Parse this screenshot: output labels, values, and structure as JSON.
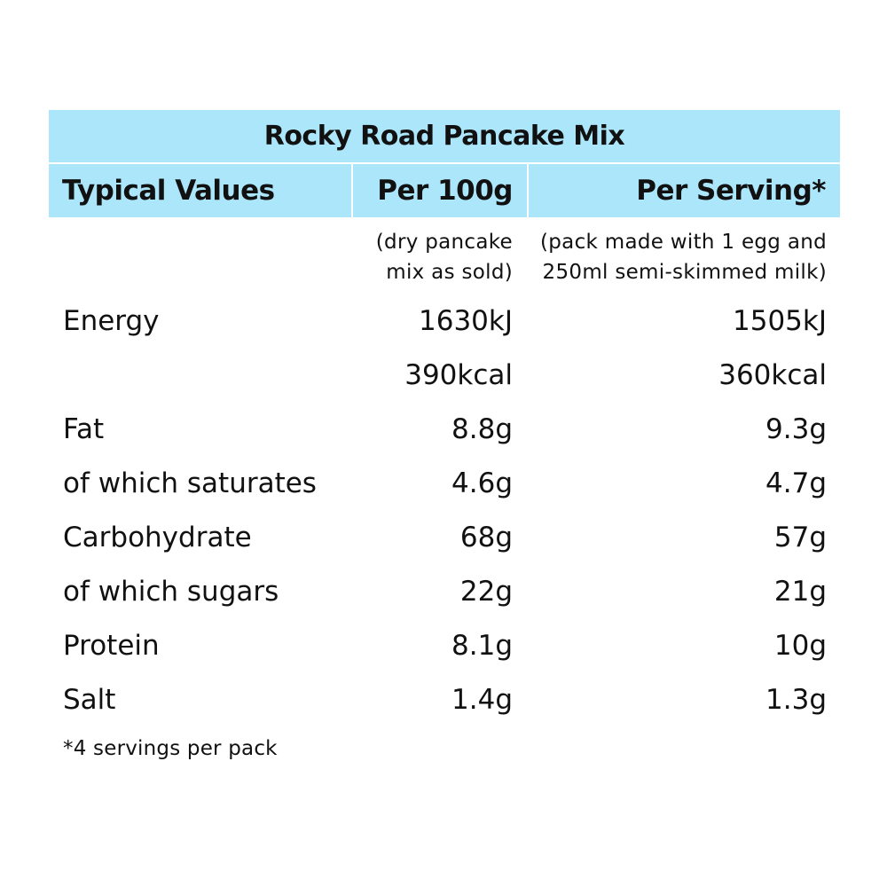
{
  "table": {
    "title": "Rocky Road Pancake Mix",
    "headers": {
      "label": "Typical Values",
      "per100": "Per 100g",
      "serving": "Per Serving*"
    },
    "notes": {
      "per100": "(dry pancake\nmix as sold)",
      "serving": "(pack made with 1 egg and\n250ml semi-skimmed milk)"
    },
    "rows": [
      {
        "label": "Energy",
        "per100": "1630kJ",
        "serving": "1505kJ"
      },
      {
        "label": "",
        "per100": "390kcal",
        "serving": "360kcal"
      },
      {
        "label": "Fat",
        "per100": "8.8g",
        "serving": "9.3g"
      },
      {
        "label": "of which saturates",
        "per100": "4.6g",
        "serving": "4.7g"
      },
      {
        "label": "Carbohydrate",
        "per100": "68g",
        "serving": "57g"
      },
      {
        "label": "of which sugars",
        "per100": "22g",
        "serving": "21g"
      },
      {
        "label": "Protein",
        "per100": "8.1g",
        "serving": "10g"
      },
      {
        "label": "Salt",
        "per100": "1.4g",
        "serving": "1.3g"
      }
    ],
    "footnote": "*4 servings per pack"
  },
  "colors": {
    "header_background": "#ace6fb",
    "text": "#111111"
  }
}
